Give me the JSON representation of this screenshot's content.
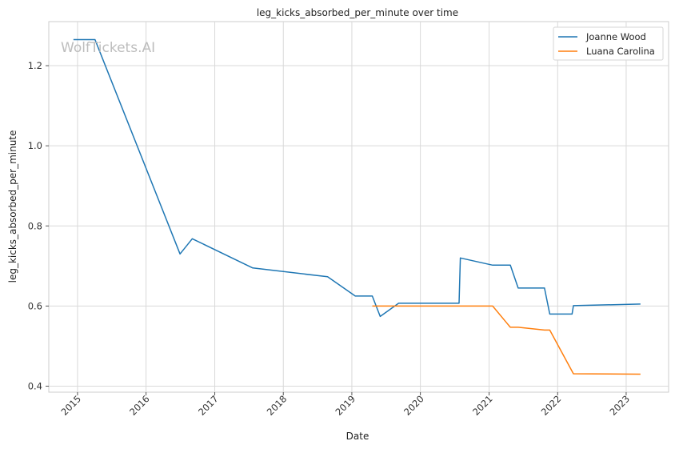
{
  "chart_data": {
    "type": "line",
    "title": "leg_kicks_absorbed_per_minute over time",
    "xlabel": "Date",
    "ylabel": "leg_kicks_absorbed_per_minute",
    "watermark": "WolfTickets.AI",
    "x_ticks": [
      "2015",
      "2016",
      "2017",
      "2018",
      "2019",
      "2020",
      "2021",
      "2022",
      "2023"
    ],
    "y_ticks": [
      0.4,
      0.6,
      0.8,
      1.0,
      1.2
    ],
    "y_tick_labels": [
      "0.4",
      "0.6",
      "0.8",
      "1.0",
      "1.2"
    ],
    "xlim": [
      "2014-08-01",
      "2023-08-15"
    ],
    "ylim": [
      0.385,
      1.31
    ],
    "grid": true,
    "legend_position": "top-right",
    "series": [
      {
        "name": "Joanne Wood",
        "color": "#1f77b4",
        "x": [
          "2014-12-10",
          "2015-04-04",
          "2016-06-30",
          "2016-09-03",
          "2017-07-22",
          "2018-08-25",
          "2019-01-19",
          "2019-04-20",
          "2019-06-01",
          "2019-09-07",
          "2020-07-25",
          "2020-08-01",
          "2021-01-20",
          "2021-04-24",
          "2021-06-05",
          "2021-10-23",
          "2021-11-20",
          "2022-03-19",
          "2022-03-26",
          "2023-03-18"
        ],
        "y": [
          1.265,
          1.265,
          0.73,
          0.768,
          0.695,
          0.673,
          0.625,
          0.625,
          0.574,
          0.607,
          0.607,
          0.72,
          0.702,
          0.702,
          0.645,
          0.645,
          0.58,
          0.58,
          0.601,
          0.605
        ]
      },
      {
        "name": "Luana Carolina",
        "color": "#ff7f0e",
        "x": [
          "2019-04-20",
          "2021-01-20",
          "2021-04-24",
          "2021-06-05",
          "2021-10-23",
          "2021-11-20",
          "2022-03-26",
          "2023-03-18"
        ],
        "y": [
          0.6,
          0.6,
          0.547,
          0.547,
          0.54,
          0.54,
          0.431,
          0.43
        ]
      }
    ]
  }
}
